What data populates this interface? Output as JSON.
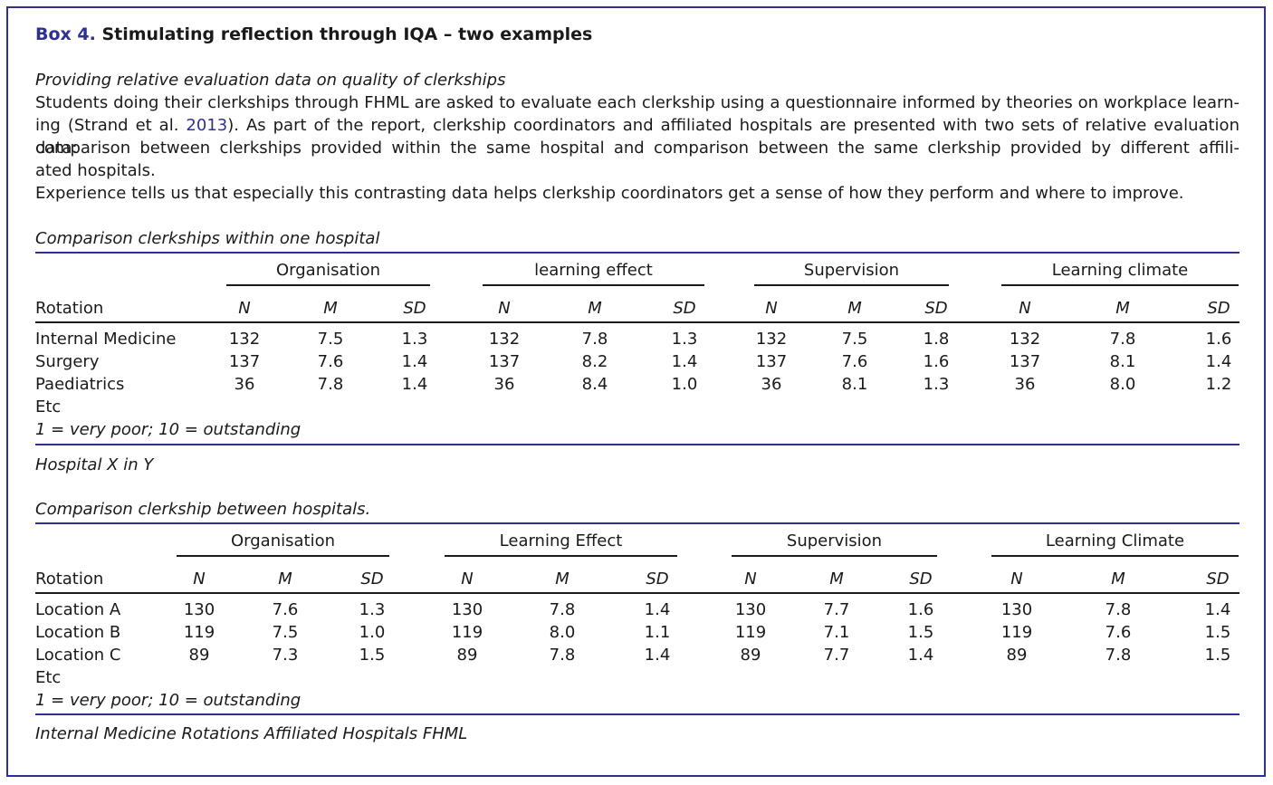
{
  "box": {
    "label": "Box 4.",
    "title": "Stimulating reflection through IQA – two examples",
    "subtitle": "Providing relative evaluation data on quality of clerkships",
    "paragraph": {
      "line1": "Students doing their clerkships through FHML are asked to evaluate each clerkship using a questionnaire informed by theories on workplace learn-",
      "line2_pre": "ing (Strand et al. ",
      "line2_ref": "2013",
      "line2_post": "). As part of the report, clerkship coordinators and affiliated hospitals are presented with two sets of relative evaluation data:",
      "line3": "comparison between clerkships provided within the same hospital and comparison between the same clerkship provided by different affili-",
      "line4": "ated hospitals.",
      "line5": "Experience tells us that especially this contrasting data helps clerkship coordinators get a sense of how they perform and where to improve."
    }
  },
  "table1": {
    "caption": "Comparison clerkships within one hospital",
    "groups": [
      "Organisation",
      "learning effect",
      "Supervision",
      "Learning climate"
    ],
    "row_header": "Rotation",
    "subheaders": [
      "N",
      "M",
      "SD"
    ],
    "rows": [
      {
        "label": "Internal Medicine",
        "values": [
          "132",
          "7.5",
          "1.3",
          "132",
          "7.8",
          "1.3",
          "132",
          "7.5",
          "1.8",
          "132",
          "7.8",
          "1.6"
        ]
      },
      {
        "label": "Surgery",
        "values": [
          "137",
          "7.6",
          "1.4",
          "137",
          "8.2",
          "1.4",
          "137",
          "7.6",
          "1.6",
          "137",
          "8.1",
          "1.4"
        ]
      },
      {
        "label": "Paediatrics",
        "values": [
          "36",
          "7.8",
          "1.4",
          "36",
          "8.4",
          "1.0",
          "36",
          "8.1",
          "1.3",
          "36",
          "8.0",
          "1.2"
        ]
      }
    ],
    "etc": "Etc",
    "scale_note": "1 = very poor; 10 = outstanding",
    "footer": "Hospital X in Y"
  },
  "table2": {
    "caption": "Comparison clerkship between hospitals.",
    "groups": [
      "Organisation",
      "Learning Effect",
      "Supervision",
      "Learning Climate"
    ],
    "row_header": "Rotation",
    "subheaders": [
      "N",
      "M",
      "SD"
    ],
    "rows": [
      {
        "label": "Location A",
        "values": [
          "130",
          "7.6",
          "1.3",
          "130",
          "7.8",
          "1.4",
          "130",
          "7.7",
          "1.6",
          "130",
          "7.8",
          "1.4"
        ]
      },
      {
        "label": "Location B",
        "values": [
          "119",
          "7.5",
          "1.0",
          "119",
          "8.0",
          "1.1",
          "119",
          "7.1",
          "1.5",
          "119",
          "7.6",
          "1.5"
        ]
      },
      {
        "label": "Location C",
        "values": [
          "89",
          "7.3",
          "1.5",
          "89",
          "7.8",
          "1.4",
          "89",
          "7.7",
          "1.4",
          "89",
          "7.8",
          "1.5"
        ]
      }
    ],
    "etc": "Etc",
    "scale_note": "1 = very poor; 10 = outstanding",
    "footer": "Internal Medicine Rotations Affiliated Hospitals FHML"
  },
  "colors": {
    "accent": "#2e3192",
    "text": "#1a1a1a"
  }
}
